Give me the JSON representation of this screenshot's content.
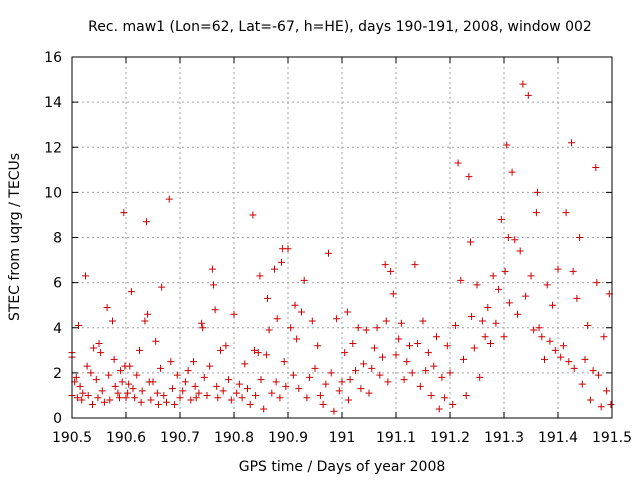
{
  "chart_data": {
    "type": "scatter",
    "title": "Rec. maw1 (Lon=62, Lat=-67, h=HE), days 190-191, 2008, window 002",
    "xlabel": "GPS time / Days of year 2008",
    "ylabel": "STEC from uqrg / TECUs",
    "xlim": [
      190.5,
      191.5
    ],
    "ylim": [
      0,
      16
    ],
    "xticks": [
      190.5,
      190.6,
      190.7,
      190.8,
      190.9,
      191,
      191.1,
      191.2,
      191.3,
      191.4,
      191.5
    ],
    "xtick_labels": [
      "190.5",
      "190.6",
      "190.7",
      "190.8",
      "190.9",
      "191",
      "191.1",
      "191.2",
      "191.3",
      "191.4",
      "191.5"
    ],
    "yticks": [
      0,
      2,
      4,
      6,
      8,
      10,
      12,
      14,
      16
    ],
    "ytick_labels": [
      "0",
      "2",
      "4",
      "6",
      "8",
      "10",
      "12",
      "14",
      "16"
    ],
    "grid": true,
    "marker": "+",
    "marker_color": "#cc0000",
    "series": [
      {
        "name": "STEC",
        "points": [
          [
            190.5,
            2.7
          ],
          [
            190.5,
            2.9
          ],
          [
            190.5,
            1.0
          ],
          [
            190.505,
            1.6
          ],
          [
            190.508,
            1.8
          ],
          [
            190.51,
            0.9
          ],
          [
            190.512,
            4.1
          ],
          [
            190.515,
            1.4
          ],
          [
            190.518,
            0.8
          ],
          [
            190.52,
            1.1
          ],
          [
            190.525,
            6.3
          ],
          [
            190.528,
            2.3
          ],
          [
            190.53,
            1.0
          ],
          [
            190.535,
            2.0
          ],
          [
            190.538,
            0.6
          ],
          [
            190.54,
            3.1
          ],
          [
            190.545,
            1.7
          ],
          [
            190.548,
            0.9
          ],
          [
            190.55,
            3.3
          ],
          [
            190.553,
            2.9
          ],
          [
            190.556,
            1.2
          ],
          [
            190.56,
            0.7
          ],
          [
            190.565,
            4.9
          ],
          [
            190.568,
            1.9
          ],
          [
            190.57,
            0.8
          ],
          [
            190.575,
            4.3
          ],
          [
            190.578,
            2.6
          ],
          [
            190.58,
            1.4
          ],
          [
            190.585,
            1.1
          ],
          [
            190.588,
            0.9
          ],
          [
            190.59,
            2.1
          ],
          [
            190.593,
            1.6
          ],
          [
            190.596,
            9.1
          ],
          [
            190.598,
            2.3
          ],
          [
            190.6,
            0.9
          ],
          [
            190.603,
            1.1
          ],
          [
            190.605,
            1.5
          ],
          [
            190.607,
            2.3
          ],
          [
            190.61,
            5.6
          ],
          [
            190.613,
            1.3
          ],
          [
            190.616,
            0.9
          ],
          [
            190.62,
            1.9
          ],
          [
            190.625,
            3.0
          ],
          [
            190.628,
            0.7
          ],
          [
            190.63,
            1.2
          ],
          [
            190.635,
            4.3
          ],
          [
            190.638,
            8.7
          ],
          [
            190.64,
            4.6
          ],
          [
            190.643,
            1.6
          ],
          [
            190.646,
            0.8
          ],
          [
            190.65,
            1.6
          ],
          [
            190.655,
            3.4
          ],
          [
            190.658,
            1.1
          ],
          [
            190.66,
            0.6
          ],
          [
            190.664,
            2.2
          ],
          [
            190.666,
            5.8
          ],
          [
            190.67,
            1.0
          ],
          [
            190.675,
            0.7
          ],
          [
            190.68,
            9.7
          ],
          [
            190.683,
            2.5
          ],
          [
            190.686,
            1.3
          ],
          [
            190.69,
            0.6
          ],
          [
            190.695,
            1.9
          ],
          [
            190.7,
            0.9
          ],
          [
            190.705,
            1.2
          ],
          [
            190.71,
            1.6
          ],
          [
            190.715,
            2.1
          ],
          [
            190.72,
            0.8
          ],
          [
            190.725,
            2.5
          ],
          [
            190.728,
            1.4
          ],
          [
            190.73,
            0.9
          ],
          [
            190.735,
            1.1
          ],
          [
            190.74,
            4.2
          ],
          [
            190.742,
            4.0
          ],
          [
            190.745,
            1.8
          ],
          [
            190.75,
            1.0
          ],
          [
            190.755,
            2.3
          ],
          [
            190.76,
            6.6
          ],
          [
            190.762,
            5.9
          ],
          [
            190.765,
            4.8
          ],
          [
            190.768,
            1.4
          ],
          [
            190.77,
            0.9
          ],
          [
            190.775,
            3.0
          ],
          [
            190.78,
            1.2
          ],
          [
            190.785,
            3.2
          ],
          [
            190.79,
            1.7
          ],
          [
            190.795,
            0.8
          ],
          [
            190.8,
            4.6
          ],
          [
            190.805,
            1.1
          ],
          [
            190.81,
            1.5
          ],
          [
            190.815,
            0.9
          ],
          [
            190.82,
            2.4
          ],
          [
            190.825,
            1.3
          ],
          [
            190.83,
            0.6
          ],
          [
            190.835,
            9.0
          ],
          [
            190.838,
            3.0
          ],
          [
            190.84,
            1.0
          ],
          [
            190.845,
            2.9
          ],
          [
            190.848,
            6.3
          ],
          [
            190.85,
            1.7
          ],
          [
            190.855,
            0.4
          ],
          [
            190.86,
            2.8
          ],
          [
            190.862,
            5.3
          ],
          [
            190.865,
            3.9
          ],
          [
            190.87,
            1.1
          ],
          [
            190.875,
            6.6
          ],
          [
            190.878,
            1.6
          ],
          [
            190.88,
            4.4
          ],
          [
            190.885,
            0.9
          ],
          [
            190.888,
            6.9
          ],
          [
            190.89,
            7.5
          ],
          [
            190.893,
            2.5
          ],
          [
            190.896,
            1.4
          ],
          [
            190.9,
            7.5
          ],
          [
            190.905,
            4.0
          ],
          [
            190.91,
            1.9
          ],
          [
            190.913,
            5.0
          ],
          [
            190.916,
            3.5
          ],
          [
            190.92,
            1.3
          ],
          [
            190.925,
            4.7
          ],
          [
            190.93,
            6.1
          ],
          [
            190.935,
            0.9
          ],
          [
            190.94,
            1.8
          ],
          [
            190.945,
            4.3
          ],
          [
            190.95,
            2.2
          ],
          [
            190.955,
            3.2
          ],
          [
            190.96,
            1.0
          ],
          [
            190.965,
            0.6
          ],
          [
            190.97,
            1.5
          ],
          [
            190.975,
            7.3
          ],
          [
            190.98,
            2.0
          ],
          [
            190.985,
            0.3
          ],
          [
            190.99,
            4.4
          ],
          [
            190.995,
            1.2
          ],
          [
            191.0,
            1.6
          ],
          [
            191.005,
            2.9
          ],
          [
            191.01,
            4.7
          ],
          [
            191.012,
            0.8
          ],
          [
            191.015,
            1.7
          ],
          [
            191.02,
            3.3
          ],
          [
            191.025,
            2.1
          ],
          [
            191.03,
            4.0
          ],
          [
            191.035,
            1.3
          ],
          [
            191.04,
            2.4
          ],
          [
            191.045,
            3.9
          ],
          [
            191.05,
            1.1
          ],
          [
            191.055,
            2.2
          ],
          [
            191.06,
            3.1
          ],
          [
            191.065,
            4.0
          ],
          [
            191.07,
            1.9
          ],
          [
            191.075,
            2.7
          ],
          [
            191.08,
            6.8
          ],
          [
            191.082,
            4.3
          ],
          [
            191.085,
            1.6
          ],
          [
            191.09,
            6.5
          ],
          [
            191.095,
            5.5
          ],
          [
            191.1,
            2.8
          ],
          [
            191.105,
            3.5
          ],
          [
            191.11,
            4.2
          ],
          [
            191.115,
            1.7
          ],
          [
            191.12,
            2.5
          ],
          [
            191.125,
            3.2
          ],
          [
            191.13,
            2.0
          ],
          [
            191.135,
            6.8
          ],
          [
            191.14,
            3.3
          ],
          [
            191.145,
            1.4
          ],
          [
            191.15,
            4.3
          ],
          [
            191.155,
            2.1
          ],
          [
            191.16,
            2.9
          ],
          [
            191.165,
            1.0
          ],
          [
            191.17,
            2.3
          ],
          [
            191.175,
            3.6
          ],
          [
            191.18,
            0.4
          ],
          [
            191.185,
            1.8
          ],
          [
            191.19,
            0.9
          ],
          [
            191.195,
            3.2
          ],
          [
            191.2,
            2.0
          ],
          [
            191.205,
            0.6
          ],
          [
            191.21,
            4.1
          ],
          [
            191.215,
            11.3
          ],
          [
            191.22,
            6.1
          ],
          [
            191.225,
            2.6
          ],
          [
            191.23,
            1.0
          ],
          [
            191.235,
            10.7
          ],
          [
            191.238,
            7.8
          ],
          [
            191.24,
            4.5
          ],
          [
            191.245,
            3.1
          ],
          [
            191.25,
            5.9
          ],
          [
            191.255,
            1.8
          ],
          [
            191.26,
            4.3
          ],
          [
            191.265,
            3.6
          ],
          [
            191.27,
            4.9
          ],
          [
            191.275,
            3.3
          ],
          [
            191.28,
            6.3
          ],
          [
            191.285,
            4.2
          ],
          [
            191.29,
            5.7
          ],
          [
            191.295,
            8.8
          ],
          [
            191.3,
            3.6
          ],
          [
            191.302,
            6.5
          ],
          [
            191.305,
            12.1
          ],
          [
            191.308,
            8.0
          ],
          [
            191.31,
            5.1
          ],
          [
            191.315,
            10.9
          ],
          [
            191.32,
            7.9
          ],
          [
            191.325,
            4.6
          ],
          [
            191.33,
            7.4
          ],
          [
            191.335,
            14.8
          ],
          [
            191.34,
            5.4
          ],
          [
            191.345,
            14.3
          ],
          [
            191.35,
            6.3
          ],
          [
            191.355,
            3.9
          ],
          [
            191.36,
            9.1
          ],
          [
            191.362,
            10.0
          ],
          [
            191.365,
            4.0
          ],
          [
            191.37,
            3.6
          ],
          [
            191.375,
            2.6
          ],
          [
            191.38,
            5.9
          ],
          [
            191.385,
            3.4
          ],
          [
            191.39,
            5.0
          ],
          [
            191.395,
            3.0
          ],
          [
            191.4,
            6.6
          ],
          [
            191.405,
            2.7
          ],
          [
            191.41,
            3.2
          ],
          [
            191.415,
            9.1
          ],
          [
            191.42,
            2.5
          ],
          [
            191.425,
            12.2
          ],
          [
            191.428,
            6.5
          ],
          [
            191.43,
            2.2
          ],
          [
            191.435,
            5.3
          ],
          [
            191.44,
            8.0
          ],
          [
            191.445,
            1.5
          ],
          [
            191.45,
            2.6
          ],
          [
            191.455,
            4.1
          ],
          [
            191.46,
            0.8
          ],
          [
            191.465,
            2.1
          ],
          [
            191.47,
            11.1
          ],
          [
            191.472,
            6.0
          ],
          [
            191.475,
            1.9
          ],
          [
            191.48,
            0.5
          ],
          [
            191.485,
            3.6
          ],
          [
            191.49,
            1.2
          ],
          [
            191.495,
            5.5
          ],
          [
            191.498,
            0.6
          ]
        ]
      }
    ]
  }
}
